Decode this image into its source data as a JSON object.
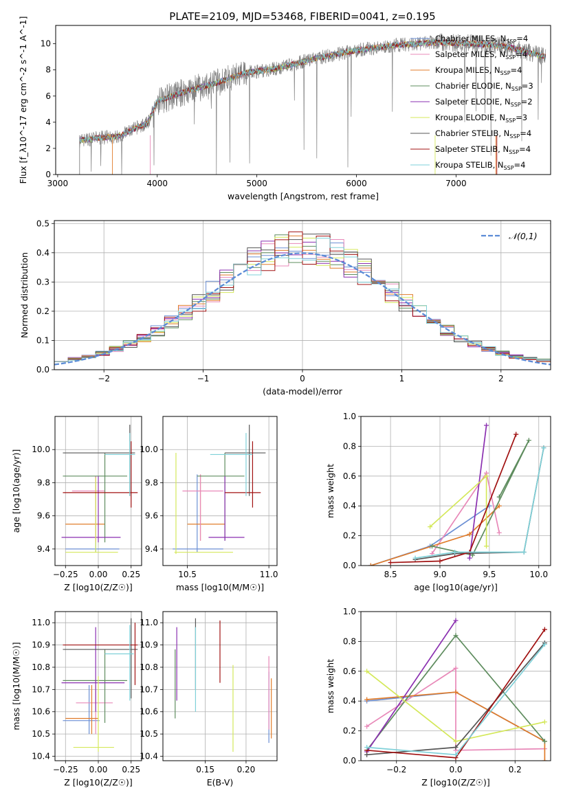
{
  "figure_title": "PLATE=2109, MJD=53468, FIBERID=0041, z=0.195",
  "series_styles": [
    {
      "name": "Chabrier MILES",
      "nssp": "4",
      "color": "#6b8fd4"
    },
    {
      "name": "Salpeter MILES",
      "nssp": "4",
      "color": "#e888b8"
    },
    {
      "name": "Kroupa MILES",
      "nssp": "4",
      "color": "#e07b29"
    },
    {
      "name": "Chabrier ELODIE",
      "nssp": "3",
      "color": "#5e8c5e"
    },
    {
      "name": "Salpeter ELODIE",
      "nssp": "2",
      "color": "#8a2fb0"
    },
    {
      "name": "Kroupa ELODIE",
      "nssp": "3",
      "color": "#d4e85a"
    },
    {
      "name": "Chabrier STELIB",
      "nssp": "4",
      "color": "#555555"
    },
    {
      "name": "Salpeter STELIB",
      "nssp": "4",
      "color": "#a01010"
    },
    {
      "name": "Kroupa STELIB",
      "nssp": "4",
      "color": "#7ed0d8"
    }
  ],
  "chart_data": [
    {
      "id": "spectrum",
      "type": "line",
      "xlabel": "wavelength [Angstrom, rest frame]",
      "ylabel": "Flux [f_λ10^-17 erg cm^-2 s^-1 A^-1]",
      "xlim": [
        2980,
        7950
      ],
      "ylim": [
        0,
        11.4
      ],
      "xticks": [
        3000,
        4000,
        5000,
        6000,
        7000
      ],
      "yticks": [
        0,
        2,
        4,
        6,
        8,
        10
      ],
      "grid": false,
      "legend": "top-right",
      "data_color": "#808080",
      "continuum": [
        [
          3220,
          2.6
        ],
        [
          3400,
          2.8
        ],
        [
          3600,
          2.9
        ],
        [
          3800,
          3.6
        ],
        [
          3900,
          3.9
        ],
        [
          4000,
          5.6
        ],
        [
          4300,
          6.4
        ],
        [
          4600,
          7.0
        ],
        [
          4900,
          7.8
        ],
        [
          5200,
          8.1
        ],
        [
          5600,
          8.9
        ],
        [
          6000,
          9.5
        ],
        [
          6400,
          9.9
        ],
        [
          6800,
          10.1
        ],
        [
          7200,
          10.0
        ],
        [
          7500,
          9.8
        ],
        [
          7900,
          9.0
        ]
      ]
    },
    {
      "id": "residuals",
      "type": "line",
      "xlabel": "(data-model)/error",
      "ylabel": "Normed distribution",
      "xlim": [
        -2.5,
        2.5
      ],
      "ylim": [
        0,
        0.51
      ],
      "xticks": [
        -2,
        -1,
        0,
        1,
        2
      ],
      "yticks": [
        0,
        0.1,
        0.2,
        0.3,
        0.4,
        0.5
      ],
      "grid": true,
      "legend": "top-right",
      "gaussian_label": "𝒩(0,1)",
      "gaussian_color": "#5b8bd6"
    },
    {
      "id": "age_vs_z",
      "type": "scatter",
      "xlabel": "Z [log10(Z/Z☉)]",
      "ylabel": "age [log10(age/yr)]",
      "xlim": [
        -0.33,
        0.33
      ],
      "ylim": [
        9.3,
        10.2
      ],
      "xticks": [
        -0.25,
        0,
        0.25
      ],
      "yticks": [
        9.4,
        9.6,
        9.8,
        10.0
      ],
      "grid": true,
      "points": [
        {
          "s": 0,
          "x": -0.02,
          "xe": [
            -0.25,
            0.16
          ],
          "y": 9.4,
          "ye": [
            9.38,
            9.83
          ]
        },
        {
          "s": 2,
          "x": -0.02,
          "xe": [
            -0.25,
            0.05
          ],
          "y": 9.55,
          "ye": [
            9.44,
            9.84
          ]
        },
        {
          "s": 1,
          "x": -0.02,
          "xe": [
            -0.2,
            0.05
          ],
          "y": 9.75,
          "ye": [
            9.44,
            9.84
          ]
        },
        {
          "s": 3,
          "x": 0.05,
          "xe": [
            -0.27,
            0.22
          ],
          "y": 9.84,
          "ye": [
            9.44,
            9.98
          ]
        },
        {
          "s": 4,
          "x": 0.0,
          "xe": [
            -0.28,
            0.17
          ],
          "y": 9.47,
          "ye": [
            9.44,
            9.84
          ]
        },
        {
          "s": 5,
          "x": -0.02,
          "xe": [
            -0.25,
            0.15
          ],
          "y": 9.38,
          "ye": [
            9.38,
            9.83
          ]
        },
        {
          "s": 6,
          "x": 0.24,
          "xe": [
            -0.27,
            0.28
          ],
          "y": 9.98,
          "ye": [
            9.72,
            10.15
          ]
        },
        {
          "s": 7,
          "x": 0.25,
          "xe": [
            -0.27,
            0.3
          ],
          "y": 9.74,
          "ye": [
            9.65,
            10.05
          ]
        },
        {
          "s": 8,
          "x": 0.24,
          "xe": [
            0.05,
            0.28
          ],
          "y": 9.97,
          "ye": [
            9.72,
            10.1
          ]
        }
      ]
    },
    {
      "id": "age_vs_mass",
      "type": "scatter",
      "xlabel": "mass [log10(M/M☉)]",
      "ylabel": "",
      "xlim": [
        10.35,
        11.05
      ],
      "ylim": [
        9.3,
        10.2
      ],
      "xticks": [
        10.5,
        11.0
      ],
      "yticks": [
        9.4,
        9.6,
        9.8,
        10.0
      ],
      "grid": true,
      "points": [
        {
          "s": 0,
          "x": 10.56,
          "xe": [
            10.41,
            10.72
          ],
          "y": 9.4,
          "ye": [
            9.38,
            9.85
          ]
        },
        {
          "s": 2,
          "x": 10.58,
          "xe": [
            10.5,
            10.73
          ],
          "y": 9.55,
          "ye": [
            9.45,
            9.85
          ]
        },
        {
          "s": 1,
          "x": 10.58,
          "xe": [
            10.47,
            10.72
          ],
          "y": 9.75,
          "ye": [
            9.45,
            9.85
          ]
        },
        {
          "s": 3,
          "x": 10.73,
          "xe": [
            10.56,
            10.85
          ],
          "y": 9.84,
          "ye": [
            9.45,
            9.98
          ]
        },
        {
          "s": 4,
          "x": 10.73,
          "xe": [
            10.63,
            10.85
          ],
          "y": 9.47,
          "ye": [
            9.45,
            9.84
          ]
        },
        {
          "s": 5,
          "x": 10.43,
          "xe": [
            10.42,
            10.78
          ],
          "y": 9.38,
          "ye": [
            9.37,
            9.98
          ]
        },
        {
          "s": 6,
          "x": 10.88,
          "xe": [
            10.73,
            10.98
          ],
          "y": 9.98,
          "ye": [
            9.72,
            10.15
          ]
        },
        {
          "s": 7,
          "x": 10.9,
          "xe": [
            10.73,
            10.95
          ],
          "y": 9.74,
          "ye": [
            9.65,
            10.05
          ]
        },
        {
          "s": 8,
          "x": 10.86,
          "xe": [
            10.64,
            10.9
          ],
          "y": 9.97,
          "ye": [
            9.72,
            10.1
          ]
        }
      ]
    },
    {
      "id": "weight_vs_age",
      "type": "line",
      "xlabel": "age [log10(age/yr)]",
      "ylabel": "mass weight",
      "xlim": [
        8.2,
        10.12
      ],
      "ylim": [
        0,
        1.0
      ],
      "xticks": [
        8.5,
        9.0,
        9.5,
        10.0
      ],
      "yticks": [
        0,
        0.2,
        0.4,
        0.6,
        0.8,
        1.0
      ],
      "grid": true,
      "series": [
        {
          "s": 0,
          "points": [
            [
              8.3,
              0.0
            ],
            [
              8.9,
              0.13
            ],
            [
              9.5,
              0.4
            ]
          ]
        },
        {
          "s": 1,
          "points": [
            [
              8.92,
              0.08
            ],
            [
              9.47,
              0.62
            ],
            [
              9.6,
              0.22
            ]
          ]
        },
        {
          "s": 2,
          "points": [
            [
              8.3,
              0.0
            ],
            [
              9.3,
              0.21
            ],
            [
              9.6,
              0.4
            ]
          ]
        },
        {
          "s": 3,
          "points": [
            [
              8.92,
              0.13
            ],
            [
              9.33,
              0.07
            ],
            [
              9.9,
              0.84
            ],
            [
              9.6,
              0.46
            ]
          ]
        },
        {
          "s": 4,
          "points": [
            [
              9.3,
              0.05
            ],
            [
              9.47,
              0.94
            ]
          ]
        },
        {
          "s": 5,
          "points": [
            [
              8.9,
              0.26
            ],
            [
              9.47,
              0.6
            ],
            [
              9.47,
              0.13
            ]
          ]
        },
        {
          "s": 6,
          "points": [
            [
              8.75,
              0.04
            ],
            [
              9.15,
              0.08
            ],
            [
              9.85,
              0.09
            ],
            [
              10.05,
              0.79
            ]
          ]
        },
        {
          "s": 7,
          "points": [
            [
              8.5,
              0.02
            ],
            [
              9.0,
              0.03
            ],
            [
              9.3,
              0.09
            ],
            [
              9.77,
              0.88
            ]
          ]
        },
        {
          "s": 8,
          "points": [
            [
              8.75,
              0.05
            ],
            [
              9.15,
              0.09
            ],
            [
              9.85,
              0.09
            ],
            [
              10.05,
              0.79
            ]
          ]
        }
      ]
    },
    {
      "id": "mass_vs_z",
      "type": "scatter",
      "xlabel": "Z [log10(Z/Z☉)]",
      "ylabel": "mass [log10(M/M☉)]",
      "xlim": [
        -0.33,
        0.33
      ],
      "ylim": [
        10.38,
        11.05
      ],
      "xticks": [
        -0.25,
        0,
        0.25
      ],
      "yticks": [
        10.4,
        10.5,
        10.6,
        10.7,
        10.8,
        10.9,
        11.0
      ],
      "grid": true,
      "points": [
        {
          "s": 0,
          "x": -0.07,
          "xe": [
            -0.27,
            0.01
          ],
          "y": 10.56,
          "ye": [
            10.5,
            10.72
          ]
        },
        {
          "s": 1,
          "x": -0.02,
          "xe": [
            -0.17,
            0.11
          ],
          "y": 10.64,
          "ye": [
            10.5,
            10.72
          ]
        },
        {
          "s": 2,
          "x": -0.05,
          "xe": [
            -0.25,
            0.0
          ],
          "y": 10.57,
          "ye": [
            10.5,
            10.72
          ]
        },
        {
          "s": 3,
          "x": 0.05,
          "xe": [
            -0.27,
            0.22
          ],
          "y": 10.74,
          "ye": [
            10.55,
            10.88
          ]
        },
        {
          "s": 4,
          "x": -0.02,
          "xe": [
            -0.28,
            0.2
          ],
          "y": 10.73,
          "ye": [
            10.6,
            10.98
          ]
        },
        {
          "s": 5,
          "x": 0.0,
          "xe": [
            -0.19,
            0.12
          ],
          "y": 10.44,
          "ye": [
            10.42,
            10.76
          ]
        },
        {
          "s": 6,
          "x": 0.25,
          "xe": [
            -0.27,
            0.3
          ],
          "y": 10.88,
          "ye": [
            10.66,
            11.02
          ]
        },
        {
          "s": 7,
          "x": 0.28,
          "xe": [
            -0.27,
            0.3
          ],
          "y": 10.9,
          "ye": [
            10.72,
            11.0
          ]
        },
        {
          "s": 8,
          "x": 0.24,
          "xe": [
            0.05,
            0.27
          ],
          "y": 10.86,
          "ye": [
            10.65,
            10.99
          ]
        }
      ]
    },
    {
      "id": "mass_vs_ebv",
      "type": "scatter",
      "xlabel": "E(B-V)",
      "ylabel": "",
      "xlim": [
        0.098,
        0.238
      ],
      "ylim": [
        10.38,
        11.05
      ],
      "xticks": [
        0.15,
        0.2
      ],
      "yticks": [
        10.4,
        10.5,
        10.6,
        10.7,
        10.8,
        10.9,
        11.0
      ],
      "grid": true,
      "points": [
        {
          "s": 0,
          "x": 0.228,
          "ye": [
            10.46,
            10.78
          ]
        },
        {
          "s": 1,
          "x": 0.228,
          "ye": [
            10.52,
            10.85
          ]
        },
        {
          "s": 2,
          "x": 0.231,
          "ye": [
            10.48,
            10.75
          ]
        },
        {
          "s": 3,
          "x": 0.113,
          "ye": [
            10.57,
            10.88
          ]
        },
        {
          "s": 4,
          "x": 0.115,
          "ye": [
            10.65,
            10.98
          ]
        },
        {
          "s": 5,
          "x": 0.184,
          "ye": [
            10.42,
            10.81
          ]
        },
        {
          "s": 6,
          "x": 0.138,
          "ye": [
            10.7,
            11.02
          ]
        },
        {
          "s": 7,
          "x": 0.168,
          "ye": [
            10.73,
            11.01
          ]
        },
        {
          "s": 8,
          "x": 0.138,
          "ye": [
            10.6,
            10.98
          ]
        }
      ]
    },
    {
      "id": "weight_vs_z",
      "type": "line",
      "xlabel": "Z [log10(Z/Z☉)]",
      "ylabel": "mass weight",
      "xlim": [
        -0.32,
        0.32
      ],
      "ylim": [
        0,
        1.0
      ],
      "xticks": [
        -0.2,
        0.0,
        0.2
      ],
      "yticks": [
        0,
        0.2,
        0.4,
        0.6,
        0.8,
        1.0
      ],
      "grid": true,
      "series": [
        {
          "s": 0,
          "points": [
            [
              -0.3,
              0.4
            ],
            [
              0.0,
              0.46
            ],
            [
              0.3,
              0.13
            ]
          ]
        },
        {
          "s": 1,
          "points": [
            [
              -0.3,
              0.23
            ],
            [
              0.0,
              0.62
            ],
            [
              0.0,
              0.07
            ],
            [
              0.3,
              0.08
            ]
          ]
        },
        {
          "s": 2,
          "points": [
            [
              -0.3,
              0.41
            ],
            [
              0.0,
              0.46
            ],
            [
              0.3,
              0.13
            ],
            [
              0.3,
              0.0
            ]
          ]
        },
        {
          "s": 3,
          "points": [
            [
              -0.3,
              0.07
            ],
            [
              0.0,
              0.84
            ],
            [
              0.3,
              0.13
            ]
          ]
        },
        {
          "s": 4,
          "points": [
            [
              -0.3,
              0.06
            ],
            [
              0.0,
              0.94
            ]
          ]
        },
        {
          "s": 5,
          "points": [
            [
              -0.3,
              0.6
            ],
            [
              0.0,
              0.13
            ],
            [
              0.3,
              0.26
            ]
          ]
        },
        {
          "s": 6,
          "points": [
            [
              -0.3,
              0.04
            ],
            [
              0.0,
              0.09
            ],
            [
              0.3,
              0.79
            ]
          ]
        },
        {
          "s": 7,
          "points": [
            [
              -0.3,
              0.07
            ],
            [
              0.0,
              0.02
            ],
            [
              0.3,
              0.88
            ]
          ]
        },
        {
          "s": 8,
          "points": [
            [
              -0.3,
              0.09
            ],
            [
              0.0,
              0.04
            ],
            [
              0.3,
              0.78
            ]
          ]
        }
      ]
    }
  ]
}
